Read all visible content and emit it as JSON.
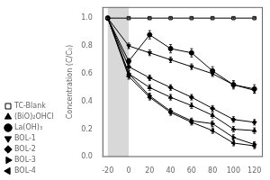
{
  "chart_data": {
    "type": "line",
    "ylabel": "Concentration (C/C₀)",
    "x": [
      -20,
      0,
      20,
      40,
      60,
      80,
      100,
      120
    ],
    "series": [
      {
        "name": "TC-Blank",
        "color": "black",
        "marker": "open_square",
        "values": [
          1.0,
          1.0,
          1.0,
          1.0,
          1.0,
          1.0,
          1.0,
          1.0
        ],
        "errors": [
          0.005,
          0.005,
          0.005,
          0.005,
          0.005,
          0.005,
          0.005,
          0.005
        ]
      },
      {
        "name": "(BiO)₂OHCl",
        "color": "black",
        "marker": "triangle_up",
        "values": [
          1.0,
          0.6,
          0.5,
          0.43,
          0.37,
          0.3,
          0.2,
          0.19
        ],
        "errors": [
          0.01,
          0.02,
          0.02,
          0.02,
          0.02,
          0.02,
          0.02,
          0.02
        ]
      },
      {
        "name": "La(OH)₃",
        "color": "black",
        "marker": "circle",
        "values": [
          1.0,
          0.69,
          0.88,
          0.78,
          0.75,
          0.62,
          0.52,
          0.49
        ],
        "errors": [
          0.01,
          0.02,
          0.03,
          0.03,
          0.03,
          0.03,
          0.03,
          0.03
        ]
      },
      {
        "name": "BOL-1",
        "color": "black",
        "marker": "triangle_down",
        "values": [
          1.0,
          0.8,
          0.75,
          0.7,
          0.65,
          0.6,
          0.52,
          0.48
        ],
        "errors": [
          0.01,
          0.02,
          0.02,
          0.02,
          0.02,
          0.02,
          0.02,
          0.02
        ]
      },
      {
        "name": "BOL-2",
        "color": "black",
        "marker": "diamond",
        "values": [
          1.0,
          0.65,
          0.57,
          0.5,
          0.43,
          0.35,
          0.27,
          0.25
        ],
        "errors": [
          0.01,
          0.02,
          0.02,
          0.02,
          0.02,
          0.02,
          0.02,
          0.02
        ]
      },
      {
        "name": "BOL-3",
        "color": "black",
        "marker": "triangle_right",
        "values": [
          1.0,
          0.6,
          0.44,
          0.33,
          0.26,
          0.24,
          0.14,
          0.09
        ],
        "errors": [
          0.01,
          0.02,
          0.02,
          0.02,
          0.02,
          0.02,
          0.02,
          0.02
        ]
      },
      {
        "name": "BOL-4",
        "color": "black",
        "marker": "triangle_left",
        "values": [
          1.0,
          0.58,
          0.43,
          0.32,
          0.25,
          0.19,
          0.1,
          0.08
        ],
        "errors": [
          0.01,
          0.02,
          0.02,
          0.02,
          0.02,
          0.02,
          0.02,
          0.02
        ]
      }
    ],
    "xlim": [
      -25,
      128
    ],
    "ylim": [
      0.0,
      1.08
    ],
    "xticks": [
      -20,
      0,
      20,
      40,
      60,
      80,
      100,
      120
    ],
    "yticks": [
      {
        "value": 0.0,
        "label": "0.0"
      },
      0.2,
      0.4,
      0.6,
      0.8,
      {
        "value": 1.0,
        "label": "1.0"
      }
    ],
    "grid": false,
    "legend": "lower left",
    "line_style": "solid",
    "shaded_region": {
      "x": [
        -20,
        0
      ],
      "color": "#d8d8d8"
    }
  }
}
